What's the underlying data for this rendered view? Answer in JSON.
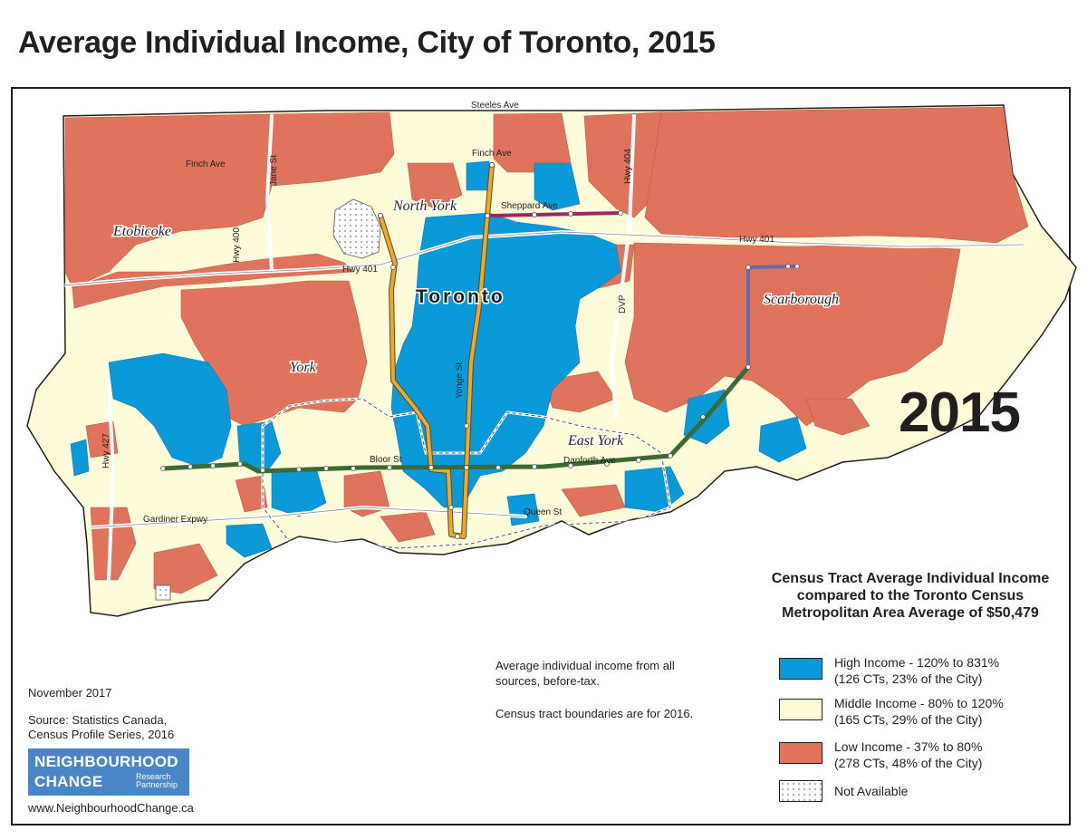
{
  "title": "Average Individual Income, City of Toronto, 2015",
  "year_label": "2015",
  "colors": {
    "high": "#0a9ad9",
    "middle": "#fefbd8",
    "low": "#e0735c",
    "not_available": "#ffffff",
    "line_1": "#f5a81c",
    "line_2": "#3a6b34",
    "line_3": "#6a6aa8",
    "line_4": "#9c2a60",
    "boundary": "#231f20"
  },
  "map": {
    "district_labels": [
      "North York",
      "Etobicoke",
      "York",
      "Toronto",
      "Scarborough",
      "East York"
    ],
    "road_labels": [
      "Steeles Ave",
      "Finch Ave",
      "Jane St",
      "Hwy 400",
      "Finch Ave",
      "Hwy 404",
      "Sheppard Ave",
      "Hwy 401",
      "Hwy 401",
      "DVP",
      "Yonge St",
      "Hwy 427",
      "Bloor St",
      "Danforth Ave",
      "Queen St",
      "Gardiner Expwy"
    ]
  },
  "legend": {
    "title": "Census Tract Average Individual Income compared to the Toronto Census Metropolitan Area Average of $50,479",
    "items": [
      {
        "category": "high",
        "line1": "High Income - 120% to 831%",
        "line2": "(126 CTs, 23% of the City)"
      },
      {
        "category": "middle",
        "line1": "Middle Income - 80% to 120%",
        "line2": "(165 CTs, 29% of the City)"
      },
      {
        "category": "low",
        "line1": "Low Income - 37% to 80%",
        "line2": "(278 CTs, 48% of the City)"
      },
      {
        "category": "not_available",
        "line1": "Not Available",
        "line2": ""
      }
    ]
  },
  "notes": {
    "income_note": "Average individual income from all sources, before-tax.",
    "boundary_note": "Census tract boundaries are for 2016.",
    "date": "November 2017",
    "source_line1": "Source: Statistics Canada,",
    "source_line2": "Census Profile Series, 2016"
  },
  "logo": {
    "line1": "NEIGHBOURHOOD",
    "line2": "CHANGE",
    "sub1": "Research",
    "sub2": "Partnership"
  },
  "url": "www.NeighbourhoodChange.ca"
}
